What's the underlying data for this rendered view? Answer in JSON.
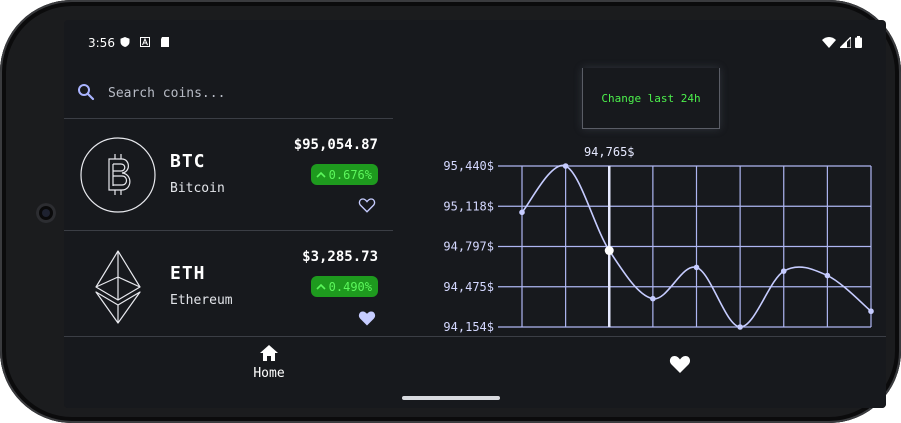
{
  "status_bar": {
    "time": "3:56"
  },
  "search": {
    "placeholder": "Search coins..."
  },
  "coins": [
    {
      "symbol": "BTC",
      "name": "Bitcoin",
      "price": "$95,054.87",
      "change": "0.676%",
      "favorite": false,
      "logo": "bitcoin-icon"
    },
    {
      "symbol": "ETH",
      "name": "Ethereum",
      "price": "$3,285.73",
      "change": "0.490%",
      "favorite": true,
      "logo": "ethereum-icon"
    }
  ],
  "chart_panel": {
    "change_button_label": "Change last 24h"
  },
  "nav": {
    "home_label": "Home"
  },
  "colors": {
    "background": "#17191d",
    "line": "#c6ccff",
    "positive_bg": "#1e9a1e",
    "positive_text": "#5cf75c",
    "grid": "#aeb6f2"
  },
  "chart_data": {
    "type": "line",
    "y_ticks": [
      "95,440$",
      "95,118$",
      "94,797$",
      "94,475$",
      "94,154$"
    ],
    "ylim": [
      94154,
      95440
    ],
    "x": [
      0,
      1,
      2,
      3,
      4,
      5,
      6,
      7,
      8
    ],
    "values": [
      95070,
      95440,
      94765,
      94380,
      94630,
      94154,
      94600,
      94565,
      94280
    ],
    "highlight": {
      "index": 2,
      "label": "94,765$"
    },
    "grid": true
  }
}
